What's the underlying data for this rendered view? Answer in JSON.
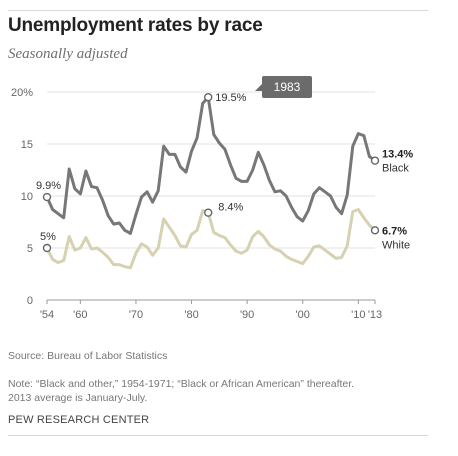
{
  "header": {
    "title": "Unemployment rates by race",
    "subtitle": "Seasonally adjusted"
  },
  "footer": {
    "source": "Source: Bureau of Labor Statistics",
    "note_line1": "Note: “Black and other,” 1954-1971; “Black or African American” thereafter.",
    "note_line2": "2013 average is January-July.",
    "org": "PEW RESEARCH CENTER"
  },
  "chart_data": {
    "type": "line",
    "title": "Unemployment rates by race",
    "subtitle": "Seasonally adjusted",
    "xlabel": "",
    "ylabel": "",
    "xlim": [
      1954,
      2013
    ],
    "ylim": [
      0,
      20
    ],
    "y_ticks": [
      0,
      5,
      10,
      15,
      20
    ],
    "y_tick_labels": [
      "0",
      "5",
      "10",
      "15",
      "20%"
    ],
    "x_ticks": [
      1954,
      1960,
      1970,
      1980,
      1990,
      2000,
      2010,
      2013
    ],
    "x_tick_labels": [
      "'54",
      "'60",
      "'70",
      "'80",
      "'90",
      "'00",
      "'10",
      "'13"
    ],
    "grid": true,
    "colors": {
      "black": "#777777",
      "white": "#d6d1b1",
      "callout_bg": "#6b6b6b",
      "grid": "#e3e3e3"
    },
    "series": [
      {
        "name": "Black",
        "end_label": "13.4%",
        "start_label": "9.9%",
        "x": [
          1954,
          1955,
          1956,
          1957,
          1958,
          1959,
          1960,
          1961,
          1962,
          1963,
          1964,
          1965,
          1966,
          1967,
          1968,
          1969,
          1970,
          1971,
          1972,
          1973,
          1974,
          1975,
          1976,
          1977,
          1978,
          1979,
          1980,
          1981,
          1982,
          1983,
          1984,
          1985,
          1986,
          1987,
          1988,
          1989,
          1990,
          1991,
          1992,
          1993,
          1994,
          1995,
          1996,
          1997,
          1998,
          1999,
          2000,
          2001,
          2002,
          2003,
          2004,
          2005,
          2006,
          2007,
          2008,
          2009,
          2010,
          2011,
          2012,
          2013
        ],
        "values": [
          9.9,
          8.7,
          8.3,
          7.9,
          12.6,
          10.7,
          10.2,
          12.4,
          10.9,
          10.8,
          9.6,
          8.1,
          7.3,
          7.4,
          6.7,
          6.4,
          8.2,
          9.9,
          10.4,
          9.4,
          10.5,
          14.8,
          14.0,
          14.0,
          12.8,
          12.3,
          14.3,
          15.6,
          18.9,
          19.5,
          15.9,
          15.1,
          14.5,
          13.0,
          11.7,
          11.4,
          11.4,
          12.5,
          14.2,
          13.0,
          11.5,
          10.4,
          10.5,
          10.0,
          8.9,
          8.0,
          7.6,
          8.6,
          10.2,
          10.8,
          10.4,
          10.0,
          8.9,
          8.3,
          10.1,
          14.8,
          16.0,
          15.8,
          13.8,
          13.4
        ]
      },
      {
        "name": "White",
        "end_label": "6.7%",
        "start_label": "5%",
        "x": [
          1954,
          1955,
          1956,
          1957,
          1958,
          1959,
          1960,
          1961,
          1962,
          1963,
          1964,
          1965,
          1966,
          1967,
          1968,
          1969,
          1970,
          1971,
          1972,
          1973,
          1974,
          1975,
          1976,
          1977,
          1978,
          1979,
          1980,
          1981,
          1982,
          1983,
          1984,
          1985,
          1986,
          1987,
          1988,
          1989,
          1990,
          1991,
          1992,
          1993,
          1994,
          1995,
          1996,
          1997,
          1998,
          1999,
          2000,
          2001,
          2002,
          2003,
          2004,
          2005,
          2006,
          2007,
          2008,
          2009,
          2010,
          2011,
          2012,
          2013
        ],
        "values": [
          5.0,
          3.9,
          3.6,
          3.8,
          6.1,
          4.8,
          5.0,
          6.0,
          4.9,
          5.0,
          4.6,
          4.1,
          3.4,
          3.4,
          3.2,
          3.1,
          4.5,
          5.4,
          5.1,
          4.3,
          5.0,
          7.8,
          7.0,
          6.2,
          5.2,
          5.1,
          6.3,
          6.7,
          8.6,
          8.4,
          6.5,
          6.2,
          6.0,
          5.3,
          4.7,
          4.5,
          4.8,
          6.1,
          6.6,
          6.1,
          5.3,
          4.9,
          4.7,
          4.2,
          3.9,
          3.7,
          3.5,
          4.2,
          5.1,
          5.2,
          4.8,
          4.4,
          4.0,
          4.1,
          5.2,
          8.5,
          8.7,
          7.9,
          7.2,
          6.7
        ]
      }
    ],
    "annotations": [
      {
        "text": "19.5%",
        "x": 1983,
        "y": 19.5,
        "series": "Black"
      },
      {
        "text": "8.4%",
        "x": 1983,
        "y": 8.4,
        "series": "White"
      },
      {
        "text": "1983",
        "x": 1983,
        "y": 19.5,
        "callout": true
      }
    ]
  }
}
